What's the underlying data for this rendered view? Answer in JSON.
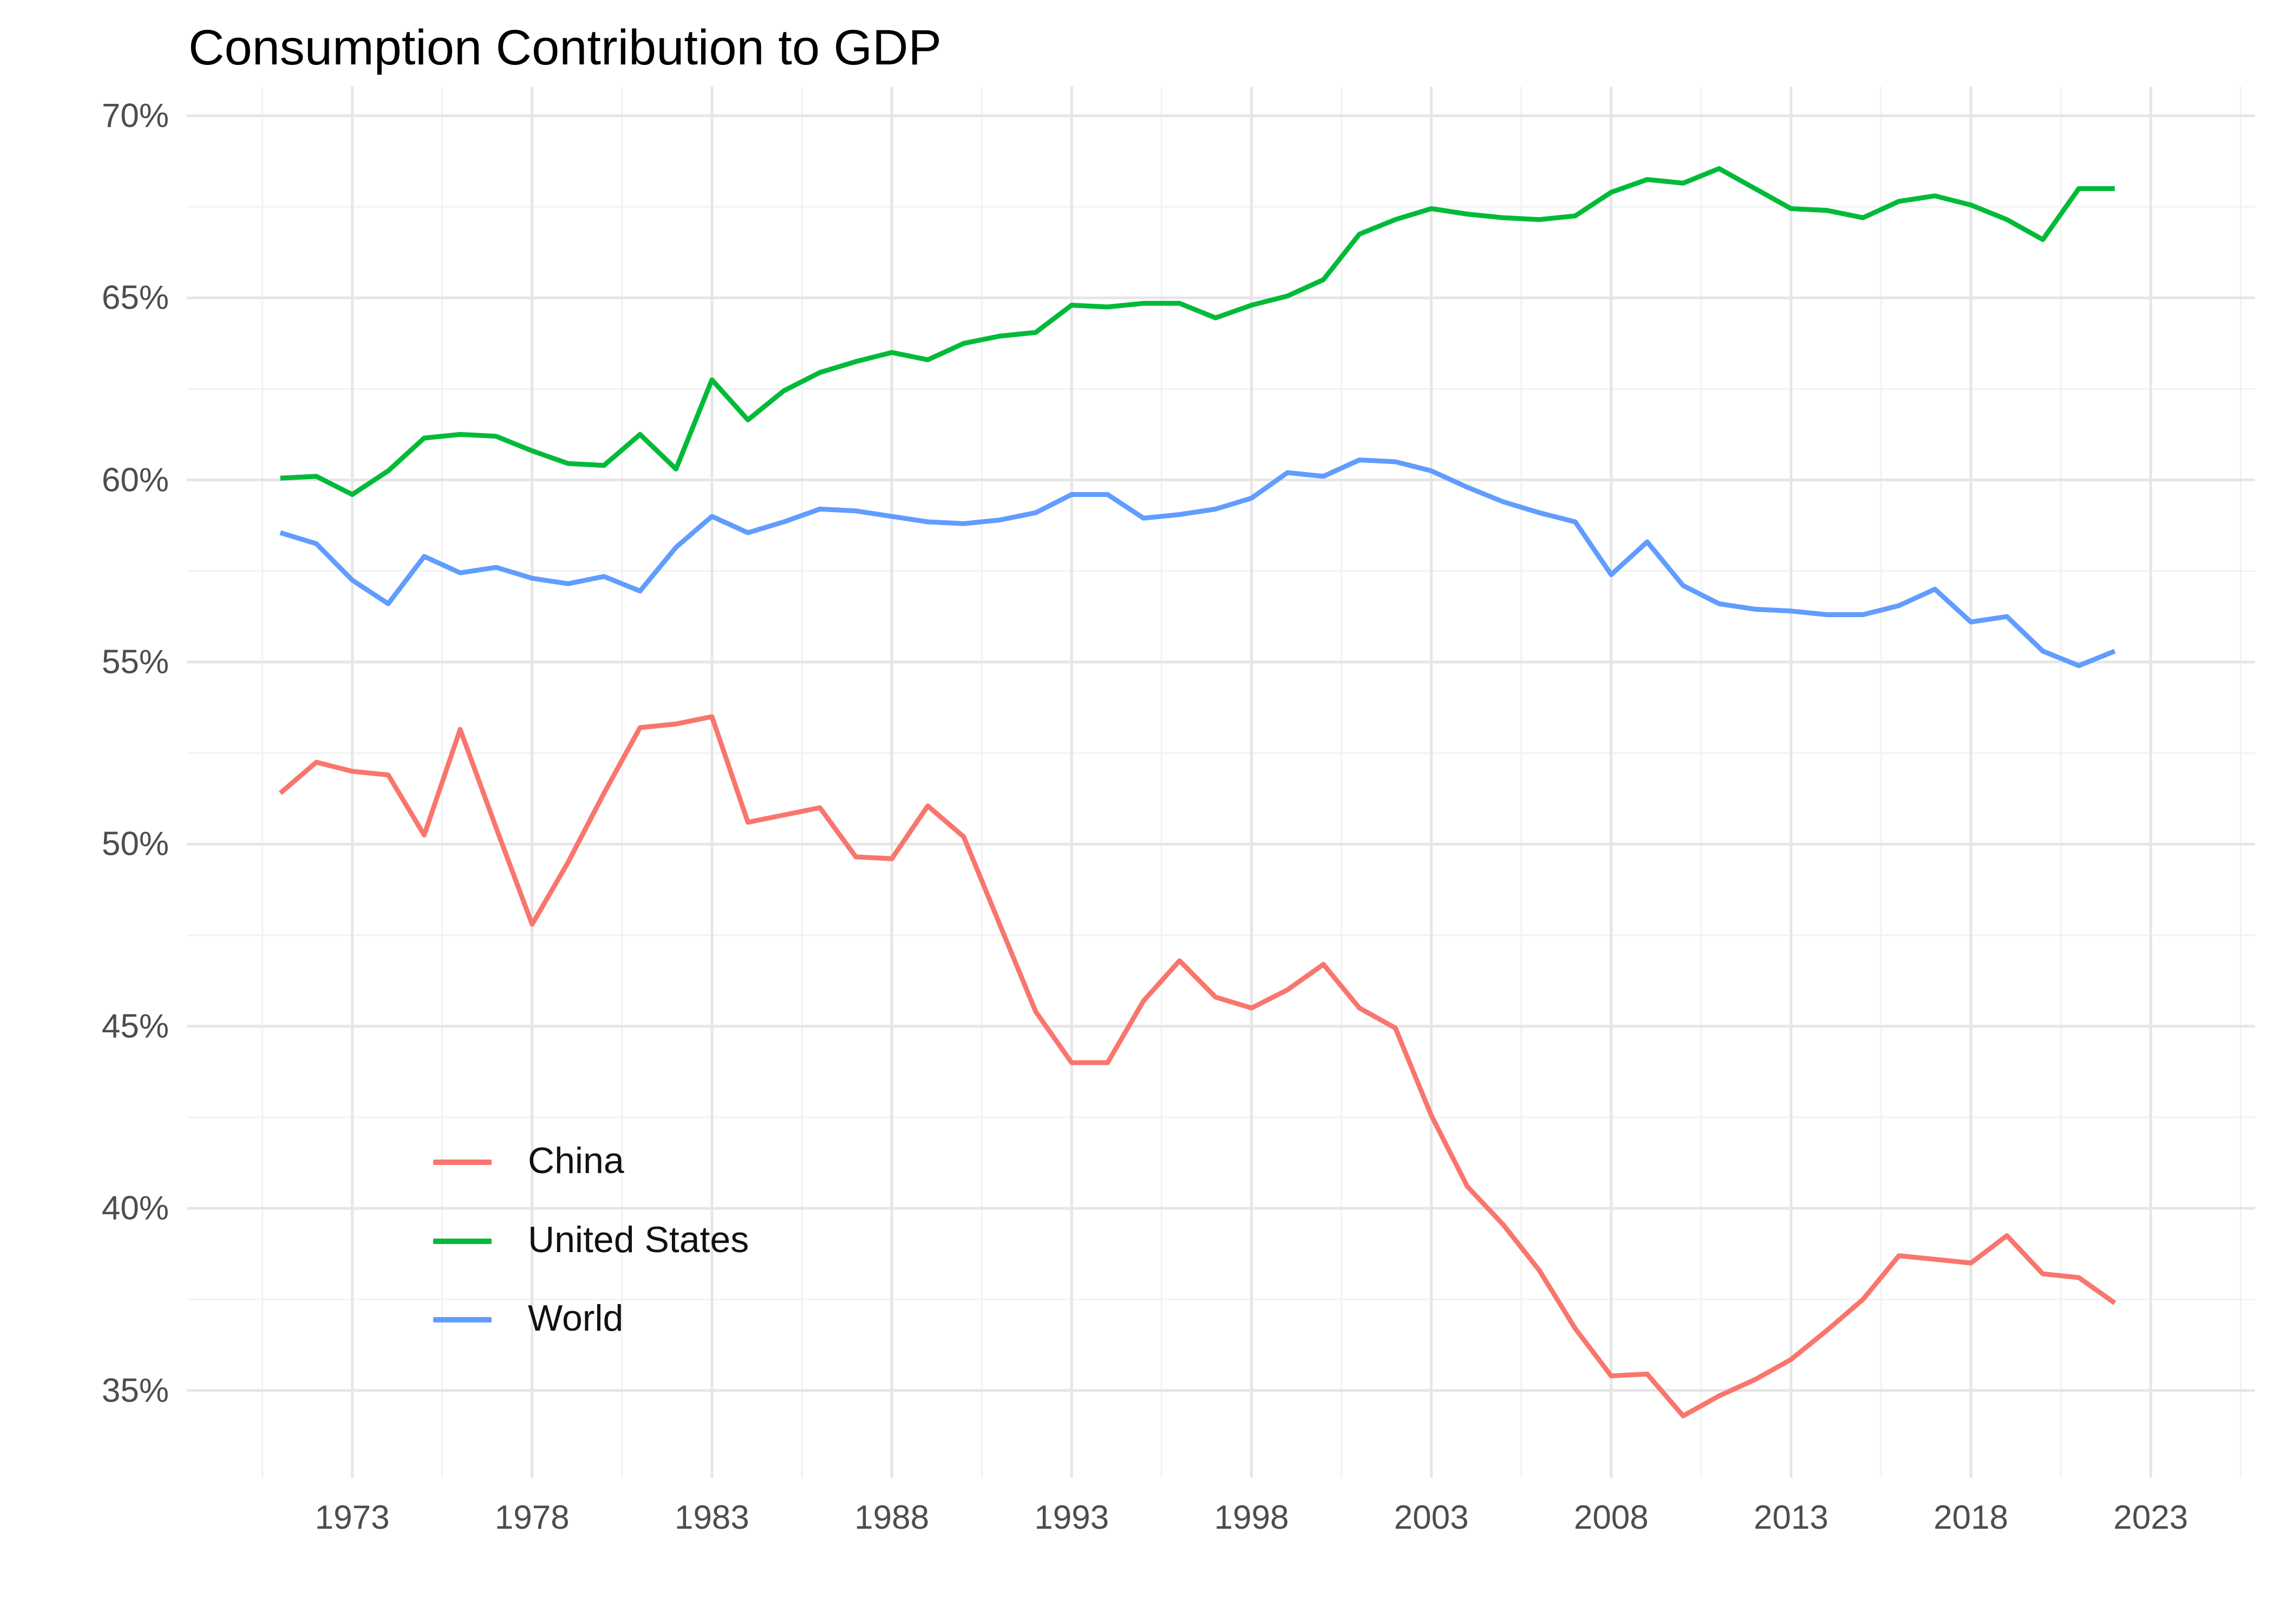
{
  "title": "Consumption Contribution to GDP",
  "colors": {
    "china": "#F8766D",
    "united_states": "#00BA38",
    "world": "#619CFF",
    "grid_major": "#E6E6E6",
    "grid_minor": "#F2F2F2",
    "tick_label": "#4D4D4D",
    "title_text": "#000000",
    "background": "#FFFFFF"
  },
  "legend": {
    "position": "inside-left-bottom",
    "items": [
      {
        "label": "China",
        "color_key": "china"
      },
      {
        "label": "United States",
        "color_key": "united_states"
      },
      {
        "label": "World",
        "color_key": "world"
      }
    ]
  },
  "axes": {
    "y_ticks": [
      {
        "value": 70,
        "label": "70%"
      },
      {
        "value": 65,
        "label": "65%"
      },
      {
        "value": 60,
        "label": "60%"
      },
      {
        "value": 55,
        "label": "55%"
      },
      {
        "value": 50,
        "label": "50%"
      },
      {
        "value": 45,
        "label": "45%"
      },
      {
        "value": 40,
        "label": "40%"
      },
      {
        "value": 35,
        "label": "35%"
      }
    ],
    "y_minor_ticks": [
      37.5,
      42.5,
      47.5,
      52.5,
      57.5,
      62.5,
      67.5
    ],
    "x_ticks": [
      {
        "value": 1973,
        "label": "1973"
      },
      {
        "value": 1978,
        "label": "1978"
      },
      {
        "value": 1983,
        "label": "1983"
      },
      {
        "value": 1988,
        "label": "1988"
      },
      {
        "value": 1993,
        "label": "1993"
      },
      {
        "value": 1998,
        "label": "1998"
      },
      {
        "value": 2003,
        "label": "2003"
      },
      {
        "value": 2008,
        "label": "2008"
      },
      {
        "value": 2013,
        "label": "2013"
      },
      {
        "value": 2018,
        "label": "2018"
      },
      {
        "value": 2023,
        "label": "2023"
      }
    ],
    "x_minor_ticks": [
      1970.5,
      1975.5,
      1980.5,
      1985.5,
      1990.5,
      1995.5,
      2000.5,
      2005.5,
      2010.5,
      2015.5,
      2020.5,
      2025.5
    ]
  },
  "chart_data": {
    "type": "line",
    "title": "Consumption Contribution to GDP",
    "xlabel": "",
    "ylabel": "",
    "grid": true,
    "legend_position": "inside-left",
    "xlim": [
      1968.4,
      2025.9
    ],
    "ylim": [
      32.6,
      70.8
    ],
    "x": [
      1971,
      1972,
      1973,
      1974,
      1975,
      1976,
      1977,
      1978,
      1979,
      1980,
      1981,
      1982,
      1983,
      1984,
      1985,
      1986,
      1987,
      1988,
      1989,
      1990,
      1991,
      1992,
      1993,
      1994,
      1995,
      1996,
      1997,
      1998,
      1999,
      2000,
      2001,
      2002,
      2003,
      2004,
      2005,
      2006,
      2007,
      2008,
      2009,
      2010,
      2011,
      2012,
      2013,
      2014,
      2015,
      2016,
      2017,
      2018,
      2019,
      2020,
      2021,
      2022
    ],
    "series": [
      {
        "name": "China",
        "color_key": "china",
        "values": [
          51.4,
          52.25,
          52.0,
          51.9,
          50.25,
          53.15,
          50.45,
          47.8,
          49.5,
          51.4,
          53.2,
          53.3,
          53.5,
          50.6,
          50.8,
          51.0,
          49.65,
          49.6,
          51.05,
          50.2,
          47.8,
          45.4,
          44.0,
          44.0,
          45.7,
          46.8,
          45.8,
          45.5,
          46.0,
          46.7,
          45.5,
          44.95,
          42.55,
          40.6,
          39.55,
          38.3,
          36.7,
          35.4,
          35.45,
          34.3,
          34.85,
          35.3,
          35.85,
          36.65,
          37.5,
          38.7,
          38.6,
          38.5,
          39.25,
          38.2,
          38.1,
          37.4
        ]
      },
      {
        "name": "United States",
        "color_key": "united_states",
        "values": [
          60.05,
          60.1,
          59.6,
          60.25,
          61.15,
          61.25,
          61.2,
          60.8,
          60.45,
          60.4,
          61.25,
          60.3,
          62.75,
          61.65,
          62.45,
          62.95,
          63.25,
          63.5,
          63.3,
          63.75,
          63.95,
          64.05,
          64.8,
          64.75,
          64.85,
          64.85,
          64.45,
          64.8,
          65.05,
          65.5,
          66.75,
          67.15,
          67.45,
          67.3,
          67.2,
          67.15,
          67.25,
          67.9,
          68.25,
          68.15,
          68.55,
          68.0,
          67.45,
          67.4,
          67.2,
          67.65,
          67.8,
          67.55,
          67.15,
          66.6,
          68.0,
          68.0
        ]
      },
      {
        "name": "World",
        "color_key": "world",
        "values": [
          58.55,
          58.25,
          57.25,
          56.6,
          57.9,
          57.45,
          57.6,
          57.3,
          57.15,
          57.35,
          56.95,
          58.15,
          59.0,
          58.55,
          58.85,
          59.2,
          59.15,
          59.0,
          58.85,
          58.8,
          58.9,
          59.1,
          59.6,
          59.6,
          58.95,
          59.05,
          59.2,
          59.5,
          60.2,
          60.1,
          60.55,
          60.5,
          60.25,
          59.8,
          59.4,
          59.1,
          58.85,
          57.4,
          58.3,
          57.1,
          56.6,
          56.45,
          56.4,
          56.3,
          56.3,
          56.55,
          57.0,
          56.1,
          56.25,
          55.3,
          54.9,
          55.3
        ]
      }
    ]
  }
}
